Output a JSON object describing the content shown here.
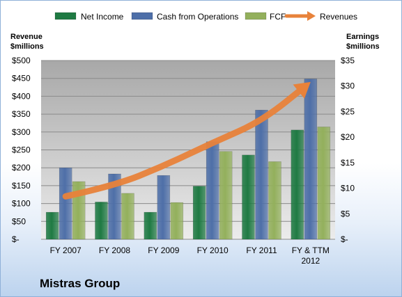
{
  "chart_data": {
    "type": "bar",
    "title": "Mistras Group",
    "categories": [
      "FY 2007",
      "FY 2008",
      "FY 2009",
      "FY 2010",
      "FY 2011",
      "FY & TTM 2012"
    ],
    "left_axis_label": [
      "Revenue",
      "$millions"
    ],
    "right_axis_label": [
      "Earnings",
      "$millions"
    ],
    "left_ticks": [
      "$-",
      "$50",
      "$100",
      "$150",
      "$200",
      "$250",
      "$300",
      "$350",
      "$400",
      "$450",
      "$500"
    ],
    "right_ticks": [
      "$-",
      "$5",
      "$10",
      "$15",
      "$20",
      "$25",
      "$30",
      "$35"
    ],
    "ylim_left": [
      0,
      500
    ],
    "ylim_right": [
      0,
      35
    ],
    "series": [
      {
        "name": "Net Income",
        "axis": "right",
        "color": "#1f7a43",
        "values": [
          5.3,
          7.3,
          5.3,
          10.4,
          16.5,
          21.4
        ]
      },
      {
        "name": "Cash from Operations",
        "axis": "right",
        "color": "#4e6fa8",
        "values": [
          14.0,
          12.8,
          12.5,
          19.1,
          25.3,
          31.4
        ]
      },
      {
        "name": "FCF",
        "axis": "right",
        "color": "#93b05c",
        "values": [
          11.3,
          9.0,
          7.2,
          17.2,
          15.2,
          22.0
        ]
      },
      {
        "name": "Revenues",
        "axis": "left",
        "type": "arrow",
        "color": "#e8823a",
        "values": [
          120,
          150,
          205,
          270,
          330,
          440
        ]
      }
    ],
    "grid": true,
    "legend_position": "top"
  }
}
